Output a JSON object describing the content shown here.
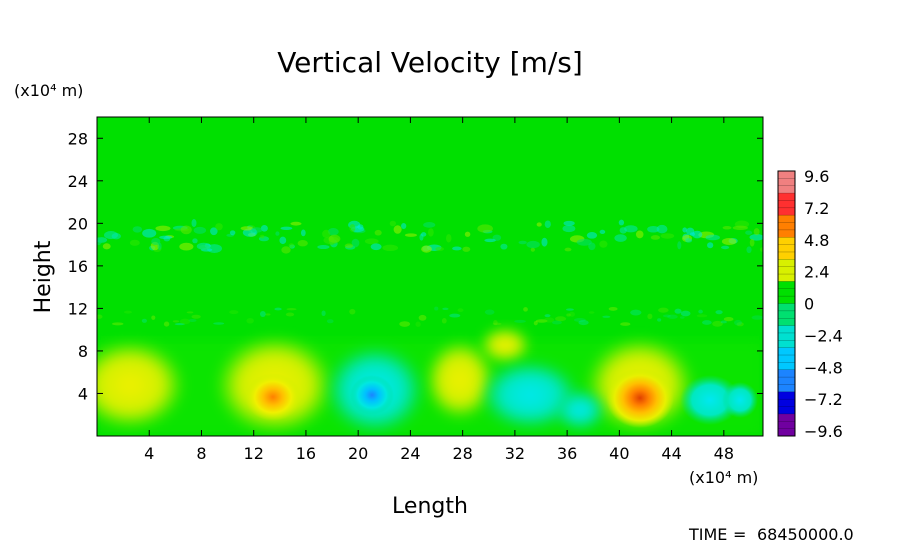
{
  "chart_data": {
    "type": "heatmap",
    "title": "Vertical Velocity [m/s]",
    "xlabel": "Length",
    "ylabel": "Height",
    "x_unit": "(x10⁴ m)",
    "y_unit": "(x10⁴ m)",
    "xlim": [
      0,
      51
    ],
    "ylim": [
      0,
      30
    ],
    "x_ticks": [
      "4",
      "8",
      "12",
      "16",
      "20",
      "24",
      "28",
      "32",
      "36",
      "40",
      "44",
      "48"
    ],
    "y_ticks": [
      "4",
      "8",
      "12",
      "16",
      "20",
      "24",
      "28"
    ],
    "colorbar": {
      "labels": [
        "9.6",
        "7.2",
        "4.8",
        "2.4",
        "0",
        "−2.4",
        "−4.8",
        "−7.2",
        "−9.6"
      ],
      "range": [
        -9.6,
        9.6
      ],
      "colors": [
        "#f08080",
        "#ff3030",
        "#ff7f00",
        "#ffd000",
        "#d8f000",
        "#00e000",
        "#00e070",
        "#00e0d0",
        "#00c8ff",
        "#1c84ff",
        "#0000e0",
        "#7000a0"
      ]
    },
    "features": [
      {
        "x": 13.5,
        "y": 3.5,
        "value": 4.8
      },
      {
        "x": 42.0,
        "y": 3.2,
        "value": 7.0
      },
      {
        "x": 21.0,
        "y": 3.8,
        "value": -4.0
      },
      {
        "x": 46.5,
        "y": 3.0,
        "value": -3.0
      },
      {
        "x": 2.5,
        "y": 4.5,
        "value": 2.8
      },
      {
        "x": 28.0,
        "y": 5.0,
        "value": 1.8
      },
      {
        "x": 31.5,
        "y": 4.0,
        "value": -2.2
      }
    ]
  },
  "footer": {
    "time_label": "TIME",
    "time_value": "68450000.0"
  }
}
